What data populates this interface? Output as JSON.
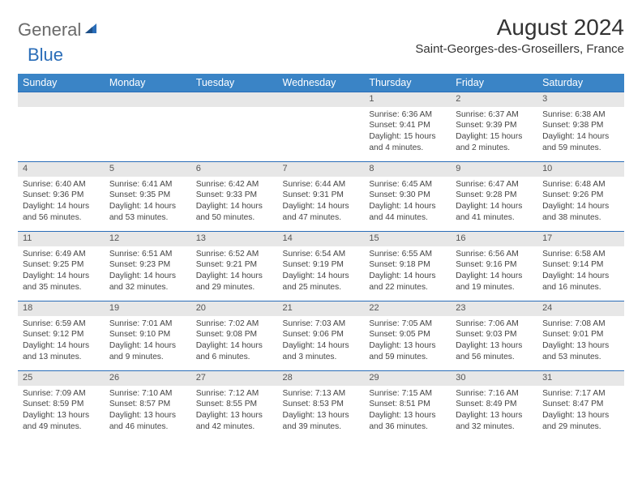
{
  "logo": {
    "general": "General",
    "blue": "Blue"
  },
  "title": "August 2024",
  "location": "Saint-Georges-des-Groseillers, France",
  "weekdays": [
    "Sunday",
    "Monday",
    "Tuesday",
    "Wednesday",
    "Thursday",
    "Friday",
    "Saturday"
  ],
  "colors": {
    "header_bg": "#3a84c6",
    "header_text": "#ffffff",
    "daynum_bg": "#e7e7e7",
    "row_border": "#2a6db8",
    "body_text": "#444444",
    "logo_gray": "#6a6a6a",
    "logo_blue": "#2a6db8"
  },
  "weeks": [
    {
      "nums": [
        "",
        "",
        "",
        "",
        "1",
        "2",
        "3"
      ],
      "cells": [
        null,
        null,
        null,
        null,
        {
          "sr": "Sunrise: 6:36 AM",
          "ss": "Sunset: 9:41 PM",
          "dl1": "Daylight: 15 hours",
          "dl2": "and 4 minutes."
        },
        {
          "sr": "Sunrise: 6:37 AM",
          "ss": "Sunset: 9:39 PM",
          "dl1": "Daylight: 15 hours",
          "dl2": "and 2 minutes."
        },
        {
          "sr": "Sunrise: 6:38 AM",
          "ss": "Sunset: 9:38 PM",
          "dl1": "Daylight: 14 hours",
          "dl2": "and 59 minutes."
        }
      ]
    },
    {
      "nums": [
        "4",
        "5",
        "6",
        "7",
        "8",
        "9",
        "10"
      ],
      "cells": [
        {
          "sr": "Sunrise: 6:40 AM",
          "ss": "Sunset: 9:36 PM",
          "dl1": "Daylight: 14 hours",
          "dl2": "and 56 minutes."
        },
        {
          "sr": "Sunrise: 6:41 AM",
          "ss": "Sunset: 9:35 PM",
          "dl1": "Daylight: 14 hours",
          "dl2": "and 53 minutes."
        },
        {
          "sr": "Sunrise: 6:42 AM",
          "ss": "Sunset: 9:33 PM",
          "dl1": "Daylight: 14 hours",
          "dl2": "and 50 minutes."
        },
        {
          "sr": "Sunrise: 6:44 AM",
          "ss": "Sunset: 9:31 PM",
          "dl1": "Daylight: 14 hours",
          "dl2": "and 47 minutes."
        },
        {
          "sr": "Sunrise: 6:45 AM",
          "ss": "Sunset: 9:30 PM",
          "dl1": "Daylight: 14 hours",
          "dl2": "and 44 minutes."
        },
        {
          "sr": "Sunrise: 6:47 AM",
          "ss": "Sunset: 9:28 PM",
          "dl1": "Daylight: 14 hours",
          "dl2": "and 41 minutes."
        },
        {
          "sr": "Sunrise: 6:48 AM",
          "ss": "Sunset: 9:26 PM",
          "dl1": "Daylight: 14 hours",
          "dl2": "and 38 minutes."
        }
      ]
    },
    {
      "nums": [
        "11",
        "12",
        "13",
        "14",
        "15",
        "16",
        "17"
      ],
      "cells": [
        {
          "sr": "Sunrise: 6:49 AM",
          "ss": "Sunset: 9:25 PM",
          "dl1": "Daylight: 14 hours",
          "dl2": "and 35 minutes."
        },
        {
          "sr": "Sunrise: 6:51 AM",
          "ss": "Sunset: 9:23 PM",
          "dl1": "Daylight: 14 hours",
          "dl2": "and 32 minutes."
        },
        {
          "sr": "Sunrise: 6:52 AM",
          "ss": "Sunset: 9:21 PM",
          "dl1": "Daylight: 14 hours",
          "dl2": "and 29 minutes."
        },
        {
          "sr": "Sunrise: 6:54 AM",
          "ss": "Sunset: 9:19 PM",
          "dl1": "Daylight: 14 hours",
          "dl2": "and 25 minutes."
        },
        {
          "sr": "Sunrise: 6:55 AM",
          "ss": "Sunset: 9:18 PM",
          "dl1": "Daylight: 14 hours",
          "dl2": "and 22 minutes."
        },
        {
          "sr": "Sunrise: 6:56 AM",
          "ss": "Sunset: 9:16 PM",
          "dl1": "Daylight: 14 hours",
          "dl2": "and 19 minutes."
        },
        {
          "sr": "Sunrise: 6:58 AM",
          "ss": "Sunset: 9:14 PM",
          "dl1": "Daylight: 14 hours",
          "dl2": "and 16 minutes."
        }
      ]
    },
    {
      "nums": [
        "18",
        "19",
        "20",
        "21",
        "22",
        "23",
        "24"
      ],
      "cells": [
        {
          "sr": "Sunrise: 6:59 AM",
          "ss": "Sunset: 9:12 PM",
          "dl1": "Daylight: 14 hours",
          "dl2": "and 13 minutes."
        },
        {
          "sr": "Sunrise: 7:01 AM",
          "ss": "Sunset: 9:10 PM",
          "dl1": "Daylight: 14 hours",
          "dl2": "and 9 minutes."
        },
        {
          "sr": "Sunrise: 7:02 AM",
          "ss": "Sunset: 9:08 PM",
          "dl1": "Daylight: 14 hours",
          "dl2": "and 6 minutes."
        },
        {
          "sr": "Sunrise: 7:03 AM",
          "ss": "Sunset: 9:06 PM",
          "dl1": "Daylight: 14 hours",
          "dl2": "and 3 minutes."
        },
        {
          "sr": "Sunrise: 7:05 AM",
          "ss": "Sunset: 9:05 PM",
          "dl1": "Daylight: 13 hours",
          "dl2": "and 59 minutes."
        },
        {
          "sr": "Sunrise: 7:06 AM",
          "ss": "Sunset: 9:03 PM",
          "dl1": "Daylight: 13 hours",
          "dl2": "and 56 minutes."
        },
        {
          "sr": "Sunrise: 7:08 AM",
          "ss": "Sunset: 9:01 PM",
          "dl1": "Daylight: 13 hours",
          "dl2": "and 53 minutes."
        }
      ]
    },
    {
      "nums": [
        "25",
        "26",
        "27",
        "28",
        "29",
        "30",
        "31"
      ],
      "cells": [
        {
          "sr": "Sunrise: 7:09 AM",
          "ss": "Sunset: 8:59 PM",
          "dl1": "Daylight: 13 hours",
          "dl2": "and 49 minutes."
        },
        {
          "sr": "Sunrise: 7:10 AM",
          "ss": "Sunset: 8:57 PM",
          "dl1": "Daylight: 13 hours",
          "dl2": "and 46 minutes."
        },
        {
          "sr": "Sunrise: 7:12 AM",
          "ss": "Sunset: 8:55 PM",
          "dl1": "Daylight: 13 hours",
          "dl2": "and 42 minutes."
        },
        {
          "sr": "Sunrise: 7:13 AM",
          "ss": "Sunset: 8:53 PM",
          "dl1": "Daylight: 13 hours",
          "dl2": "and 39 minutes."
        },
        {
          "sr": "Sunrise: 7:15 AM",
          "ss": "Sunset: 8:51 PM",
          "dl1": "Daylight: 13 hours",
          "dl2": "and 36 minutes."
        },
        {
          "sr": "Sunrise: 7:16 AM",
          "ss": "Sunset: 8:49 PM",
          "dl1": "Daylight: 13 hours",
          "dl2": "and 32 minutes."
        },
        {
          "sr": "Sunrise: 7:17 AM",
          "ss": "Sunset: 8:47 PM",
          "dl1": "Daylight: 13 hours",
          "dl2": "and 29 minutes."
        }
      ]
    }
  ]
}
